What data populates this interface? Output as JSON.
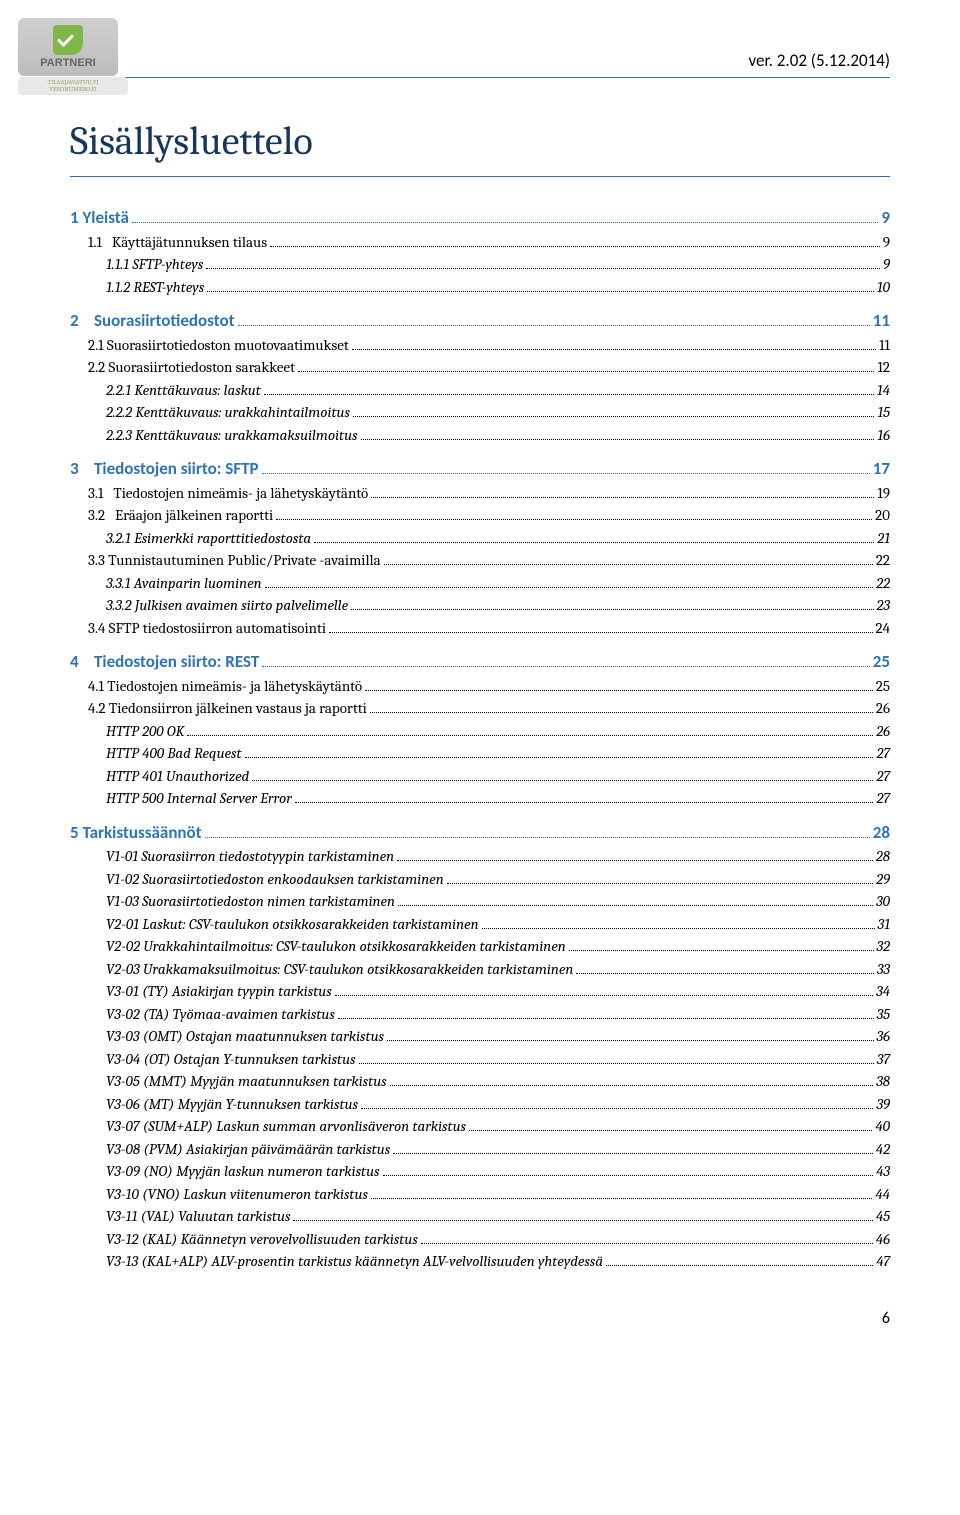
{
  "header": {
    "version": "ver. 2.02 (5.12.2014)",
    "logo_main": "PARTNERI",
    "logo_sub1": "TILAAJAVASTUU.FI",
    "logo_sub2": "VERONUMERO.FI"
  },
  "title": "Sisällysluettelo",
  "page_number": "6",
  "toc_colors": {
    "heading_blue": "#2e74b5",
    "rule_blue": "#2e6ea8",
    "title_blue": "#17365d"
  },
  "toc": [
    {
      "level": 1,
      "indent": 0,
      "label": "1 Yleistä",
      "page": "9"
    },
    {
      "level": 2,
      "indent": 18,
      "label": "1.1   Käyttäjätunnuksen tilaus",
      "page": "9"
    },
    {
      "level": 3,
      "indent": 36,
      "label": "1.1.1 SFTP-yhteys",
      "page": "9"
    },
    {
      "level": 3,
      "indent": 36,
      "label": "1.1.2 REST-yhteys",
      "page": "10"
    },
    {
      "level": 1,
      "indent": 0,
      "label": "2    Suorasiirtotiedostot",
      "page": "11"
    },
    {
      "level": 2,
      "indent": 18,
      "label": "2.1 Suorasiirtotiedoston muotovaatimukset",
      "page": "11"
    },
    {
      "level": 2,
      "indent": 18,
      "label": "2.2 Suorasiirtotiedoston sarakkeet",
      "page": "12"
    },
    {
      "level": 3,
      "indent": 36,
      "label": "2.2.1 Kenttäkuvaus: laskut",
      "page": "14"
    },
    {
      "level": 3,
      "indent": 36,
      "label": "2.2.2 Kenttäkuvaus: urakkahintailmoitus",
      "page": "15"
    },
    {
      "level": 3,
      "indent": 36,
      "label": "2.2.3 Kenttäkuvaus: urakkamaksuilmoitus",
      "page": "16"
    },
    {
      "level": 1,
      "indent": 0,
      "label": "3    Tiedostojen siirto: SFTP",
      "page": "17"
    },
    {
      "level": 2,
      "indent": 18,
      "label": "3.1   Tiedostojen nimeämis- ja lähetyskäytäntö",
      "page": "19"
    },
    {
      "level": 2,
      "indent": 18,
      "label": "3.2   Eräajon jälkeinen raportti",
      "page": "20"
    },
    {
      "level": 3,
      "indent": 36,
      "label": "3.2.1 Esimerkki raporttitiedostosta",
      "page": "21"
    },
    {
      "level": 2,
      "indent": 18,
      "label": "3.3 Tunnistautuminen Public/Private -avaimilla",
      "page": "22"
    },
    {
      "level": 3,
      "indent": 36,
      "label": "3.3.1 Avainparin luominen",
      "page": "22"
    },
    {
      "level": 3,
      "indent": 36,
      "label": "3.3.2 Julkisen avaimen siirto palvelimelle",
      "page": "23"
    },
    {
      "level": 2,
      "indent": 18,
      "label": "3.4 SFTP tiedostosiirron automatisointi",
      "page": "24"
    },
    {
      "level": 1,
      "indent": 0,
      "label": "4    Tiedostojen siirto: REST",
      "page": "25"
    },
    {
      "level": 2,
      "indent": 18,
      "label": "4.1 Tiedostojen nimeämis- ja lähetyskäytäntö",
      "page": "25"
    },
    {
      "level": 2,
      "indent": 18,
      "label": "4.2 Tiedonsiirron jälkeinen vastaus ja raportti",
      "page": "26"
    },
    {
      "level": 3,
      "indent": 36,
      "label": "HTTP 200 OK",
      "page": "26"
    },
    {
      "level": 3,
      "indent": 36,
      "label": "HTTP 400 Bad Request",
      "page": "27"
    },
    {
      "level": 3,
      "indent": 36,
      "label": "HTTP 401 Unauthorized",
      "page": "27"
    },
    {
      "level": 3,
      "indent": 36,
      "label": "HTTP 500 Internal Server Error",
      "page": "27"
    },
    {
      "level": 1,
      "indent": 0,
      "label": "5 Tarkistussäännöt",
      "page": "28"
    },
    {
      "level": 3,
      "indent": 36,
      "label": "V1-01 Suorasiirron tiedostotyypin tarkistaminen",
      "page": "28"
    },
    {
      "level": 3,
      "indent": 36,
      "label": "V1-02 Suorasiirtotiedoston enkoodauksen tarkistaminen",
      "page": "29"
    },
    {
      "level": 3,
      "indent": 36,
      "label": "V1-03 Suorasiirtotiedoston nimen tarkistaminen",
      "page": "30"
    },
    {
      "level": 3,
      "indent": 36,
      "label": "V2-01 Laskut: CSV-taulukon otsikkosarakkeiden tarkistaminen",
      "page": "31"
    },
    {
      "level": 3,
      "indent": 36,
      "label": "V2-02 Urakkahintailmoitus: CSV-taulukon otsikkosarakkeiden tarkistaminen",
      "page": "32"
    },
    {
      "level": 3,
      "indent": 36,
      "label": "V2-03 Urakkamaksuilmoitus: CSV-taulukon otsikkosarakkeiden tarkistaminen",
      "page": "33"
    },
    {
      "level": 3,
      "indent": 36,
      "label": "V3-01 (TY) Asiakirjan tyypin tarkistus",
      "page": "34"
    },
    {
      "level": 3,
      "indent": 36,
      "label": "V3-02 (TA) Työmaa-avaimen tarkistus",
      "page": "35"
    },
    {
      "level": 3,
      "indent": 36,
      "label": "V3-03 (OMT) Ostajan maatunnuksen tarkistus",
      "page": "36"
    },
    {
      "level": 3,
      "indent": 36,
      "label": "V3-04 (OT) Ostajan Y-tunnuksen tarkistus",
      "page": "37"
    },
    {
      "level": 3,
      "indent": 36,
      "label": "V3-05 (MMT) Myyjän maatunnuksen tarkistus",
      "page": "38"
    },
    {
      "level": 3,
      "indent": 36,
      "label": "V3-06 (MT) Myyjän Y-tunnuksen tarkistus",
      "page": "39"
    },
    {
      "level": 3,
      "indent": 36,
      "label": "V3-07 (SUM+ALP) Laskun summan arvonlisäveron tarkistus",
      "page": "40"
    },
    {
      "level": 3,
      "indent": 36,
      "label": "V3-08 (PVM) Asiakirjan päivämäärän tarkistus",
      "page": "42"
    },
    {
      "level": 3,
      "indent": 36,
      "label": "V3-09 (NO) Myyjän laskun numeron tarkistus",
      "page": "43"
    },
    {
      "level": 3,
      "indent": 36,
      "label": "V3-10 (VNO) Laskun viitenumeron tarkistus",
      "page": "44"
    },
    {
      "level": 3,
      "indent": 36,
      "label": "V3-11 (VAL) Valuutan tarkistus",
      "page": "45"
    },
    {
      "level": 3,
      "indent": 36,
      "label": "V3-12 (KAL) Käännetyn verovelvollisuuden tarkistus",
      "page": "46"
    },
    {
      "level": 3,
      "indent": 36,
      "label": "V3-13 (KAL+ALP) ALV-prosentin tarkistus käännetyn ALV-velvollisuuden yhteydessä",
      "page": "47"
    }
  ]
}
